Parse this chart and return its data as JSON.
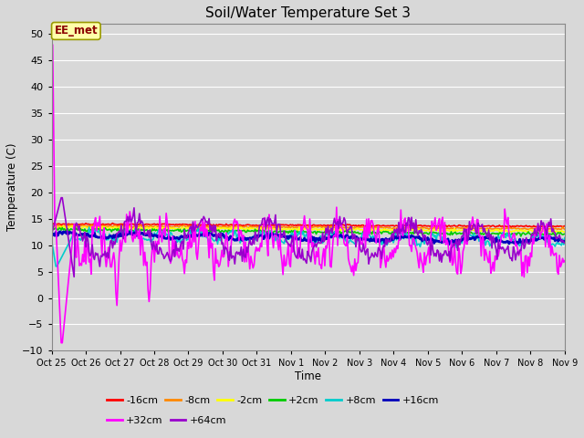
{
  "title": "Soil/Water Temperature Set 3",
  "xlabel": "Time",
  "ylabel": "Temperature (C)",
  "ylim": [
    -10,
    52
  ],
  "yticks": [
    -10,
    -5,
    0,
    5,
    10,
    15,
    20,
    25,
    30,
    35,
    40,
    45,
    50
  ],
  "bg_color": "#d8d8d8",
  "plot_bg_color": "#d8d8d8",
  "grid_color": "#ffffff",
  "series": [
    {
      "label": "-16cm",
      "color": "#ff0000",
      "lw": 1.2
    },
    {
      "label": "-8cm",
      "color": "#ff8800",
      "lw": 1.2
    },
    {
      "label": "-2cm",
      "color": "#ffff00",
      "lw": 1.2
    },
    {
      "label": "+2cm",
      "color": "#00cc00",
      "lw": 1.2
    },
    {
      "label": "+8cm",
      "color": "#00cccc",
      "lw": 1.2
    },
    {
      "label": "+16cm",
      "color": "#0000bb",
      "lw": 2.0
    },
    {
      "label": "+32cm",
      "color": "#ff00ff",
      "lw": 1.2
    },
    {
      "label": "+64cm",
      "color": "#9900cc",
      "lw": 1.2
    }
  ],
  "annotation_text": "EE_met",
  "xtick_labels": [
    "Oct 25",
    "Oct 26",
    "Oct 27",
    "Oct 28",
    "Oct 29",
    "Oct 30",
    "Oct 31",
    "Nov 1",
    "Nov 2",
    "Nov 3",
    "Nov 4",
    "Nov 5",
    "Nov 6",
    "Nov 7",
    "Nov 8",
    "Nov 9"
  ],
  "n_points": 480,
  "legend_ncol1": 6,
  "legend_ncol2": 2
}
